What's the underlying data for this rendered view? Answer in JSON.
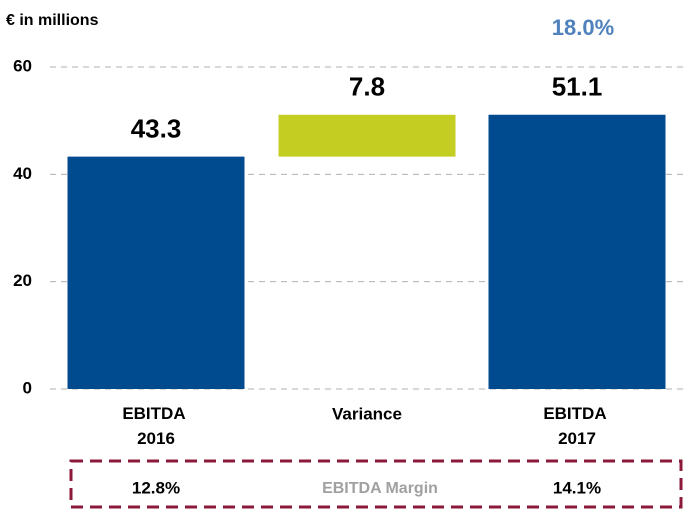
{
  "chart_data": {
    "type": "waterfall",
    "axis_label": "€ in millions",
    "annotation": "18.0%",
    "categories": [
      "EBITDA 2016",
      "Variance",
      "EBITDA 2017"
    ],
    "values": [
      43.3,
      7.8,
      51.1
    ],
    "colors": [
      "#004b8f",
      "#c4cd22",
      "#004b8f"
    ],
    "ylim": [
      0,
      60
    ],
    "yticks": [
      0,
      20,
      40,
      60
    ],
    "grid": true,
    "margin": {
      "label": "EBITDA Margin",
      "values": [
        12.8,
        null,
        14.1
      ],
      "value_labels": [
        "12.8%",
        null,
        "14.1%"
      ]
    }
  }
}
